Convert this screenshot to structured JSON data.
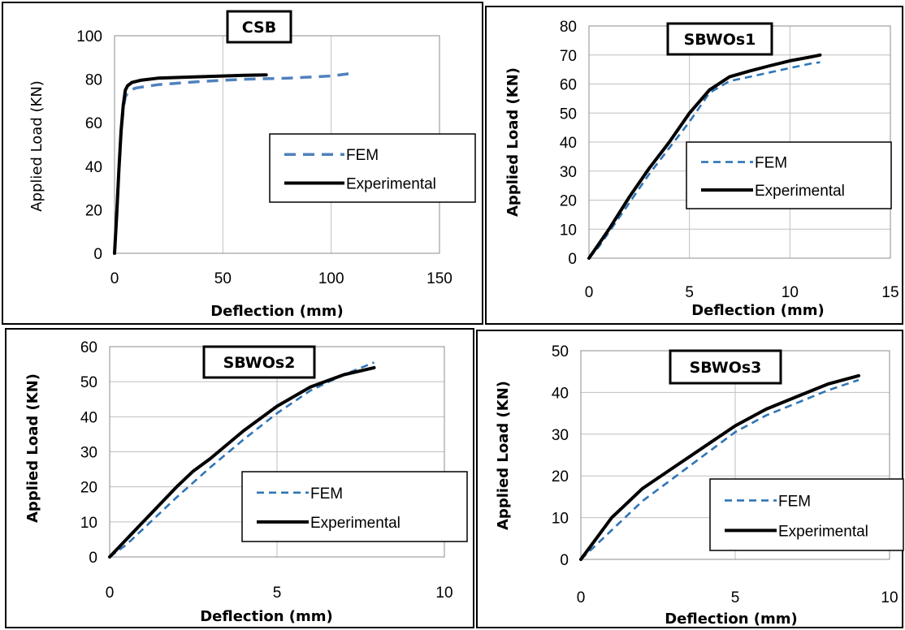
{
  "colors": {
    "fem": "#4f81bd",
    "fem_alt": "#2e75b6",
    "experimental": "#000000",
    "grid": "#bfbfbf"
  },
  "chart_data": [
    {
      "type": "line",
      "title": "CSB",
      "xlabel": "Deflection (mm)",
      "ylabel": "Applied Load (KN)",
      "xlim": [
        0,
        150
      ],
      "ylim": [
        0,
        100
      ],
      "xticks": [
        0,
        50,
        100,
        150
      ],
      "yticks": [
        0,
        20,
        40,
        60,
        80,
        100
      ],
      "grid": "vertical",
      "legend": "right",
      "series": [
        {
          "name": "FEM",
          "style": "dashed",
          "x": [
            0,
            1,
            2,
            3,
            4,
            5,
            7,
            10,
            20,
            40,
            60,
            80,
            100,
            108
          ],
          "y": [
            0,
            20,
            38,
            55,
            66,
            72,
            75,
            76,
            77.5,
            79,
            80,
            80.5,
            81.5,
            82.5
          ]
        },
        {
          "name": "Experimental",
          "style": "solid",
          "x": [
            0,
            1,
            2,
            3,
            4,
            5,
            6,
            8,
            12,
            20,
            35,
            50,
            60,
            70
          ],
          "y": [
            0,
            18,
            38,
            56,
            68,
            75,
            77,
            78.5,
            79.5,
            80.5,
            81,
            81.5,
            81.8,
            82
          ]
        }
      ]
    },
    {
      "type": "line",
      "title": "SBWOs1",
      "xlabel": "Deflection (mm)",
      "ylabel": "Applied Load (KN)",
      "xlim": [
        0,
        15
      ],
      "ylim": [
        0,
        80
      ],
      "xticks": [
        0,
        5,
        10,
        15
      ],
      "yticks": [
        0,
        10,
        20,
        30,
        40,
        50,
        60,
        70,
        80
      ],
      "grid": "both",
      "legend": "right",
      "series": [
        {
          "name": "FEM",
          "style": "dashed",
          "x": [
            0,
            0.5,
            1,
            2,
            3,
            4,
            5,
            6,
            7,
            8,
            9,
            10,
            11,
            11.5
          ],
          "y": [
            0,
            4,
            9,
            19,
            29,
            38,
            47,
            57,
            61,
            62.5,
            64,
            65.5,
            67,
            67.5
          ]
        },
        {
          "name": "Experimental",
          "style": "solid",
          "x": [
            0,
            0.5,
            1,
            2,
            3,
            4,
            5,
            6,
            7,
            8,
            9,
            10,
            11,
            11.5
          ],
          "y": [
            0,
            5,
            10,
            21,
            31,
            40,
            50,
            58,
            62.5,
            64.5,
            66.3,
            68,
            69.3,
            70
          ]
        }
      ]
    },
    {
      "type": "line",
      "title": "SBWOs2",
      "xlabel": "Deflection (mm)",
      "ylabel": "Applied Load (KN)",
      "xlim": [
        0,
        10
      ],
      "ylim": [
        0,
        60
      ],
      "xticks": [
        0,
        5,
        10
      ],
      "yticks": [
        0,
        10,
        20,
        30,
        40,
        50,
        60
      ],
      "grid": "both",
      "legend": "right",
      "series": [
        {
          "name": "FEM",
          "style": "dashed",
          "x": [
            0,
            0.5,
            1,
            2,
            3,
            4,
            5,
            6,
            7,
            7.9
          ],
          "y": [
            0,
            3.5,
            8,
            17,
            25.5,
            33.5,
            41,
            47.5,
            52,
            55.5
          ]
        },
        {
          "name": "Experimental",
          "style": "solid",
          "x": [
            0,
            0.5,
            1,
            2,
            2.5,
            3,
            4,
            5,
            6,
            7,
            7.9
          ],
          "y": [
            0,
            5,
            10,
            20,
            24.5,
            28,
            36,
            43,
            48.5,
            52,
            54
          ]
        }
      ]
    },
    {
      "type": "line",
      "title": "SBWOs3",
      "xlabel": "Deflection (mm)",
      "ylabel": "Applied Load (KN)",
      "xlim": [
        0,
        10
      ],
      "ylim": [
        0,
        50
      ],
      "xticks": [
        0,
        5,
        10
      ],
      "yticks": [
        0,
        10,
        20,
        30,
        40,
        50
      ],
      "grid": "both",
      "legend": "right",
      "series": [
        {
          "name": "FEM",
          "style": "dashed",
          "x": [
            0,
            0.5,
            1,
            2,
            3,
            4,
            5,
            6,
            7,
            8,
            9
          ],
          "y": [
            0,
            3.5,
            7,
            14,
            19.5,
            25,
            30.5,
            34.5,
            37.5,
            40.5,
            43
          ]
        },
        {
          "name": "Experimental",
          "style": "solid",
          "x": [
            0,
            0.5,
            1,
            2,
            3,
            4,
            5,
            6,
            7,
            8,
            9
          ],
          "y": [
            0,
            5,
            10,
            17,
            22,
            27,
            32,
            36,
            39,
            42,
            44
          ]
        }
      ]
    }
  ]
}
